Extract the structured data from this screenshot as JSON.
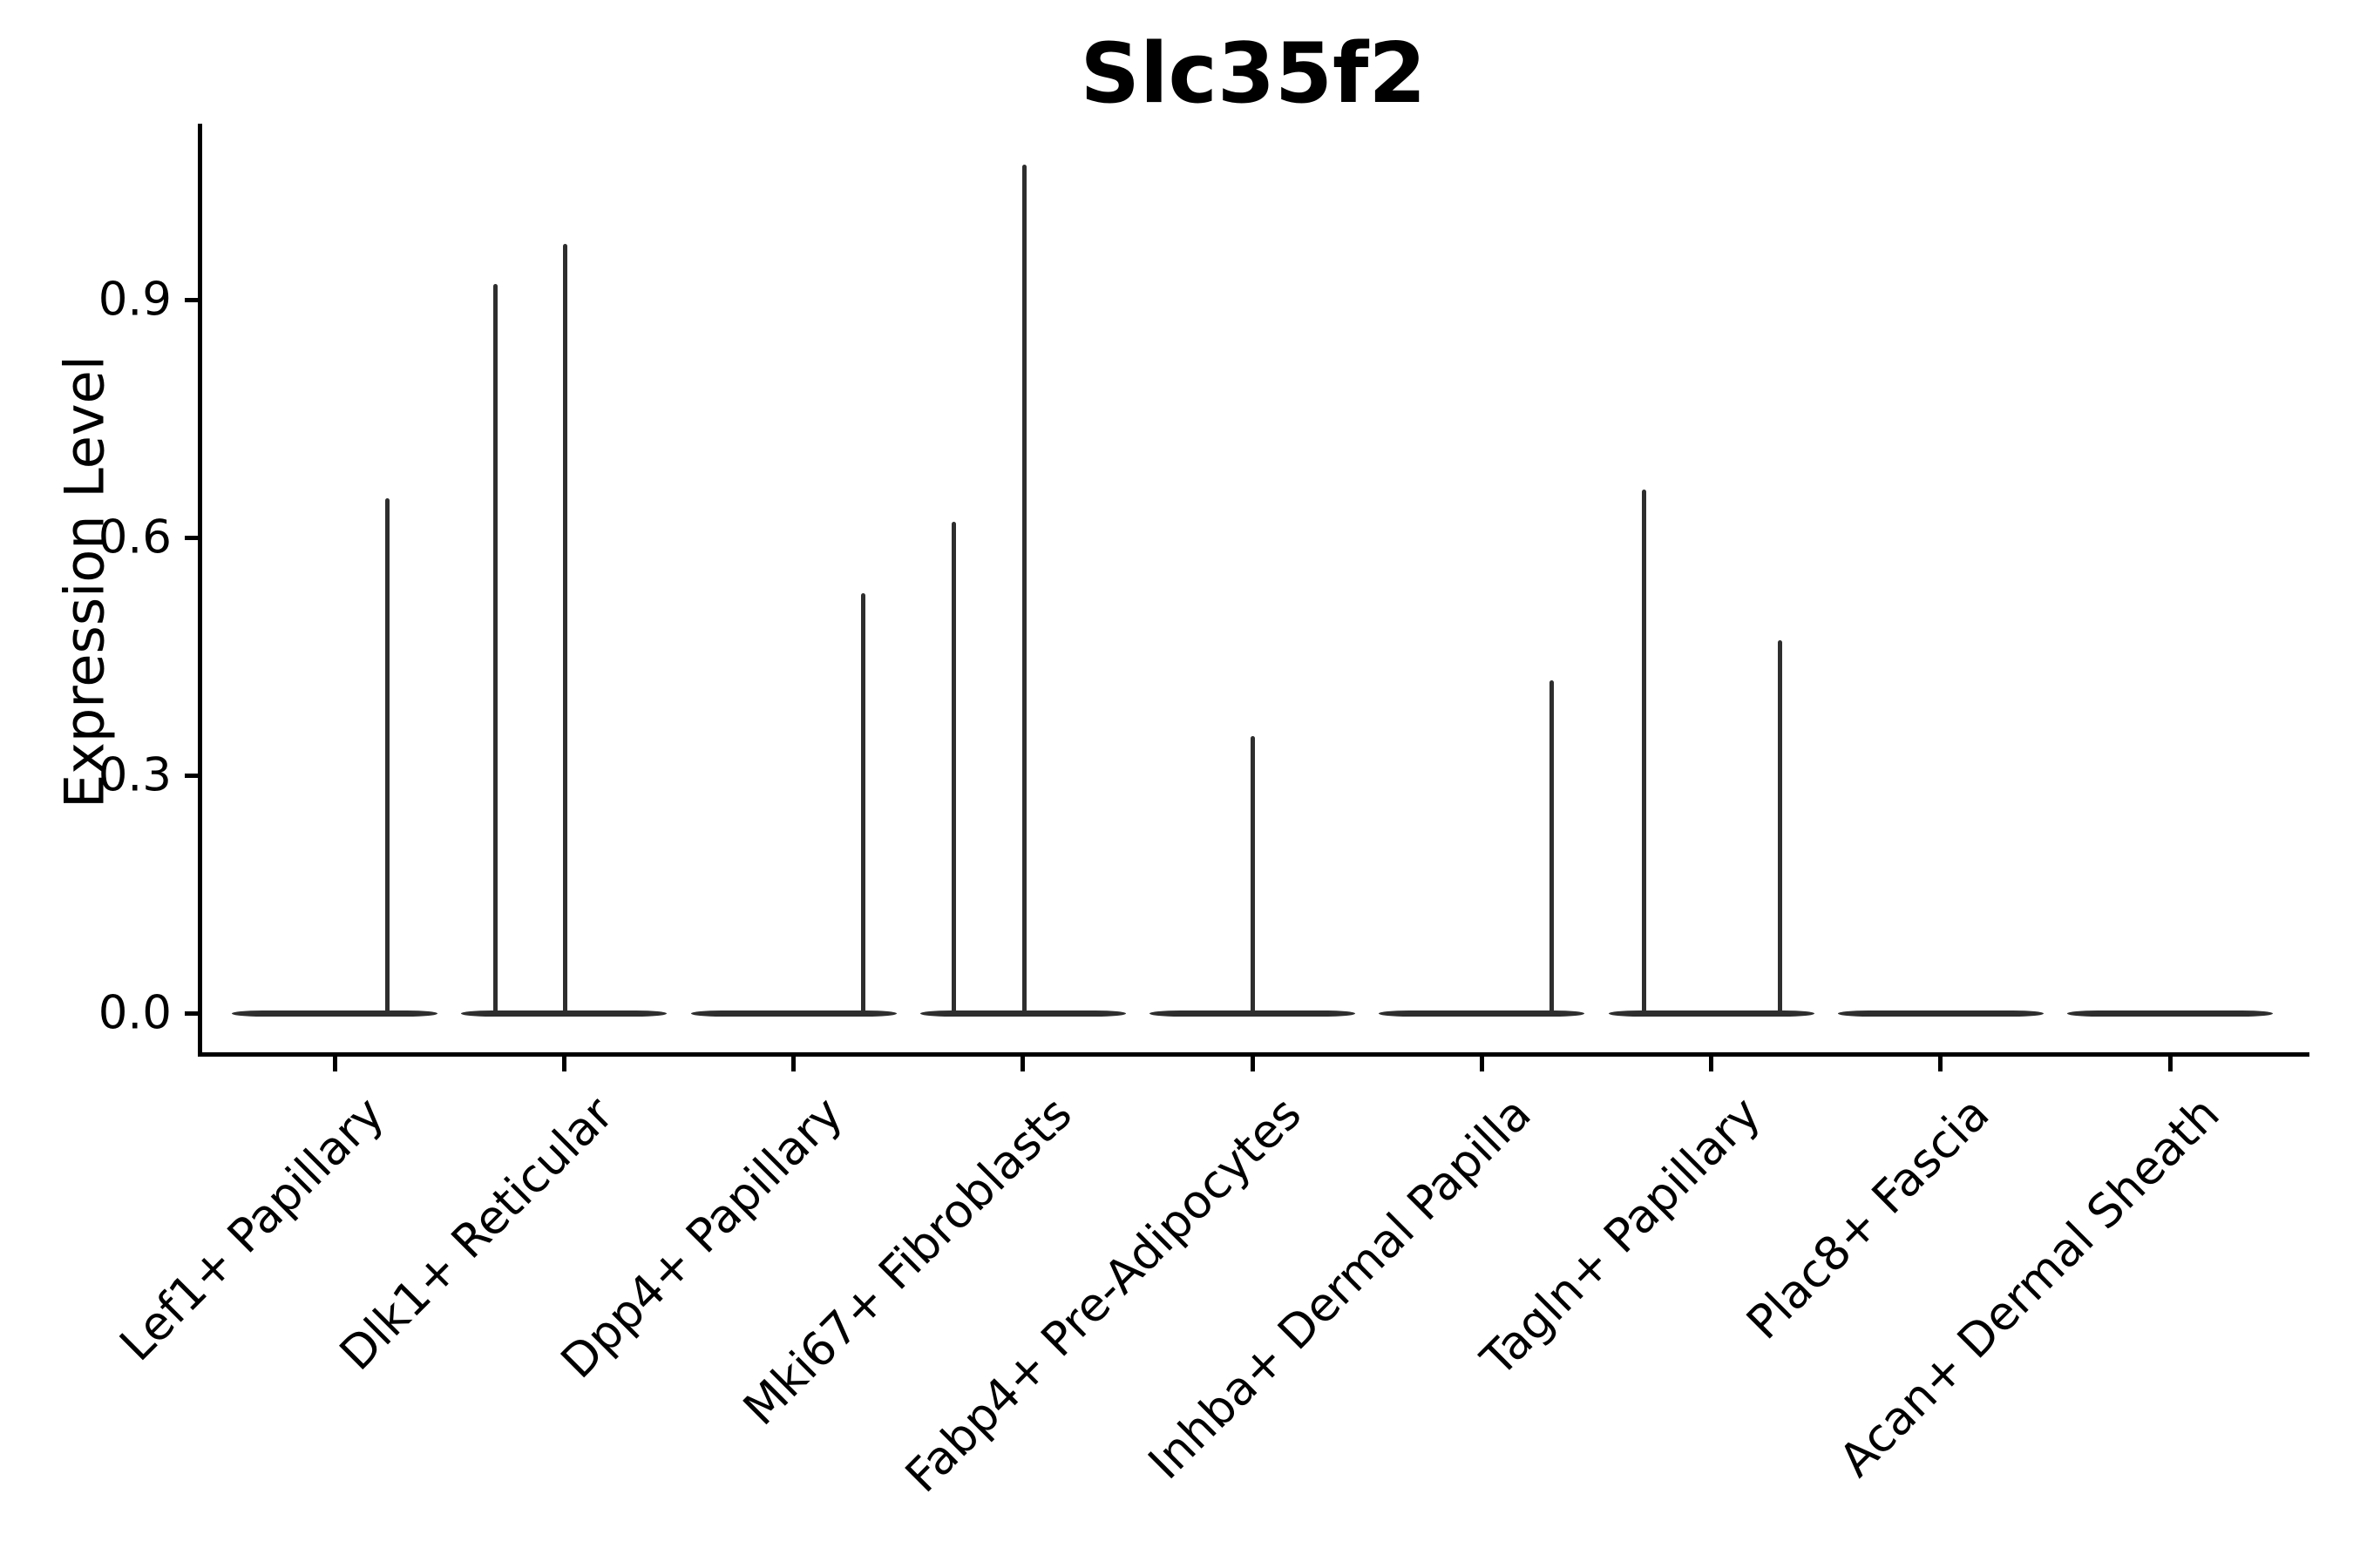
{
  "page": {
    "background": "#ffffff"
  },
  "header": {
    "title": "Slc35f2"
  },
  "y_axis": {
    "label": "Expression Level",
    "ticks": [
      {
        "label": "0.0",
        "value": 0.0
      },
      {
        "label": "0.3",
        "value": 0.3
      },
      {
        "label": "0.6",
        "value": 0.6
      },
      {
        "label": "0.9",
        "value": 0.9
      }
    ]
  },
  "colors": {
    "axis": "#000000",
    "text": "#000000",
    "violin": "#2e2e2e",
    "background": "#ffffff"
  },
  "chart_data": {
    "type": "violin",
    "title": "Slc35f2",
    "xlabel": "",
    "ylabel": "Expression Level",
    "ylim": [
      -0.05,
      1.12
    ],
    "y_ticks": [
      0.0,
      0.3,
      0.6,
      0.9
    ],
    "grid": false,
    "legend": "none",
    "x_tick_rotation_deg": 45,
    "categories": [
      "Lef1+ Papillary",
      "Dlk1+ Reticular",
      "Dpp4+ Papillary",
      "Mki67+ Fibroblasts",
      "Fabp4+ Pre-Adipocytes",
      "Inhba+ Dermal Papilla",
      "Tagln+ Papillary",
      "Plac8+ Fascia",
      "Acan+ Dermal Sheath"
    ],
    "series": [
      {
        "name": "Lef1+ Papillary",
        "baseline_at_zero": true,
        "spikes": [
          {
            "value": 0.65,
            "dx": 60
          }
        ]
      },
      {
        "name": "Dlk1+ Reticular",
        "baseline_at_zero": true,
        "spikes": [
          {
            "value": 0.92,
            "dx": -79
          },
          {
            "value": 0.97,
            "dx": 1
          }
        ]
      },
      {
        "name": "Dpp4+ Papillary",
        "baseline_at_zero": true,
        "spikes": [
          {
            "value": 0.53,
            "dx": 80
          }
        ]
      },
      {
        "name": "Mki67+ Fibroblasts",
        "baseline_at_zero": true,
        "spikes": [
          {
            "value": 0.62,
            "dx": -79
          },
          {
            "value": 1.07,
            "dx": 2
          }
        ]
      },
      {
        "name": "Fabp4+ Pre-Adipocytes",
        "baseline_at_zero": true,
        "spikes": [
          {
            "value": 0.35,
            "dx": 0
          }
        ]
      },
      {
        "name": "Inhba+ Dermal Papilla",
        "baseline_at_zero": true,
        "spikes": [
          {
            "value": 0.42,
            "dx": 80
          }
        ]
      },
      {
        "name": "Tagln+ Papillary",
        "baseline_at_zero": true,
        "spikes": [
          {
            "value": 0.66,
            "dx": -77
          },
          {
            "value": 0.47,
            "dx": 79
          }
        ]
      },
      {
        "name": "Plac8+ Fascia",
        "baseline_at_zero": true,
        "spikes": []
      },
      {
        "name": "Acan+ Dermal Sheath",
        "baseline_at_zero": true,
        "spikes": []
      }
    ]
  }
}
